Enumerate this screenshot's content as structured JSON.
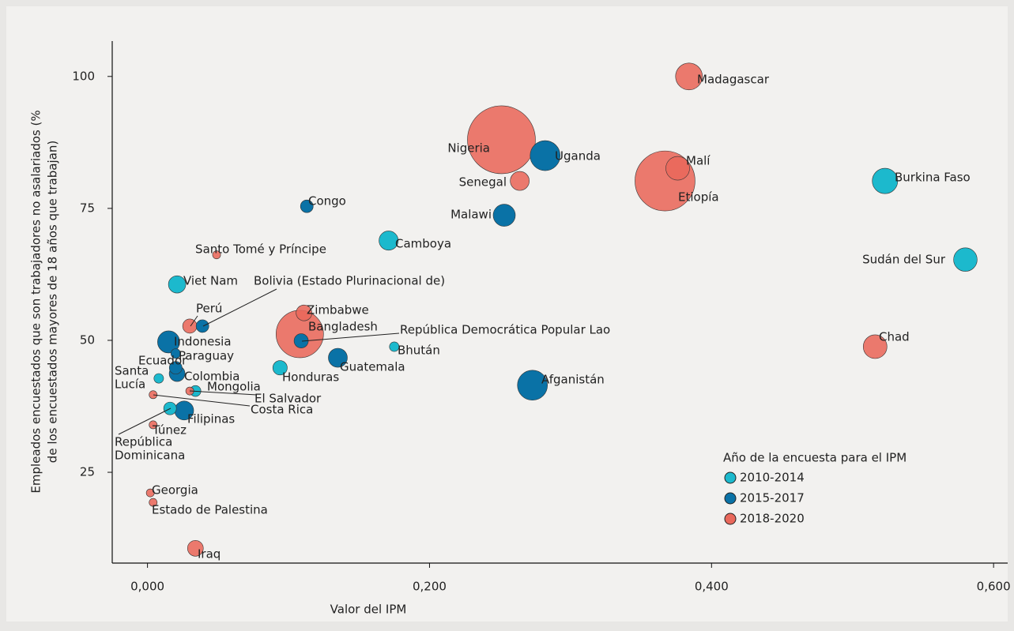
{
  "chart_data": {
    "type": "scatter",
    "x_label": "Valor del IPM",
    "y_label": [
      "Empleados encuestados que son trabajadores no asalariados (%",
      "de los encuestados mayores de 18 años que trabajan)"
    ],
    "xlim": [
      -0.025,
      0.61
    ],
    "ylim": [
      7.8,
      106.7
    ],
    "xticks": [
      {
        "value": 0,
        "label": "0,000"
      },
      {
        "value": 0.2,
        "label": "0,200"
      },
      {
        "value": 0.4,
        "label": "0,400"
      },
      {
        "value": 0.6,
        "label": "0,600"
      }
    ],
    "yticks": [
      25,
      50,
      75,
      100
    ],
    "legend_title": "Año de la encuesta para el IPM",
    "legend_position": "lower right",
    "series": [
      {
        "name": "2010-2014",
        "color": "#1cb9cd",
        "labels": [
          "Burkina Faso",
          "Sudán del Sur",
          "Camboya",
          "Viet Nam",
          "Bhután",
          "Honduras",
          [
            "Santa",
            "Lucía"
          ],
          "Mongolia",
          [
            "República",
            "Dominicana"
          ]
        ],
        "x": [
          0.523,
          0.58,
          0.171,
          0.021,
          0.175,
          0.094,
          0.008,
          0.034,
          0.016
        ],
        "values": [
          80.2,
          65.3,
          68.9,
          60.6,
          48.8,
          44.8,
          42.8,
          40.4,
          37.1
        ],
        "sizes": [
          14,
          12,
          8,
          6.5,
          2,
          4.5,
          2,
          2.6,
          3.5
        ]
      },
      {
        "name": "2015-2017",
        "color": "#0a72a6",
        "labels": [
          "Uganda",
          "Malawi",
          "Congo",
          "Afganistán",
          "Guatemala",
          "Indonesia",
          "Bolivia (Estado Plurinacional de)",
          "Paraguay",
          "Colombia",
          "Ecuador",
          "República Democrática Popular Lao",
          "Filipinas"
        ],
        "x": [
          0.282,
          0.253,
          0.113,
          0.273,
          0.135,
          0.015,
          0.039,
          0.02,
          0.021,
          0.02,
          0.109,
          0.026
        ],
        "values": [
          85.0,
          73.7,
          75.4,
          41.5,
          46.7,
          49.7,
          52.7,
          47.5,
          43.7,
          44.8,
          49.9,
          36.7
        ],
        "sizes": [
          19.5,
          10.6,
          3.5,
          19.5,
          7.8,
          10.6,
          3.5,
          2,
          5.4,
          3.5,
          4.4,
          7.8
        ]
      },
      {
        "name": "2018-2020",
        "color": "#e9685b",
        "labels": [
          "Madagascar",
          "Nigeria",
          "Etiopía",
          "Malí",
          "Senegal",
          "Chad",
          "Bangladesh",
          "Zimbabwe",
          "Perú",
          "Santo Tomé y Príncipe",
          "Georgia",
          "Estado de Palestina",
          "Iraq",
          "Costa Rica",
          "Túnez",
          "El Salvador"
        ],
        "x": [
          0.384,
          0.251,
          0.367,
          0.376,
          0.264,
          0.516,
          0.108,
          0.111,
          0.03,
          0.049,
          0.002,
          0.004,
          0.034,
          0.004,
          0.004,
          0.03
        ],
        "values": [
          100,
          88.0,
          80.2,
          82.6,
          80.2,
          48.8,
          51.2,
          55.2,
          52.7,
          66.2,
          21.1,
          19.3,
          10.6,
          39.7,
          34.0,
          40.4
        ],
        "sizes": [
          15.6,
          100,
          78,
          12.2,
          7.8,
          12.2,
          48.7,
          5.4,
          4.4,
          1.4,
          1.4,
          1.4,
          5.4,
          1.4,
          1.4,
          1.4
        ]
      }
    ]
  }
}
